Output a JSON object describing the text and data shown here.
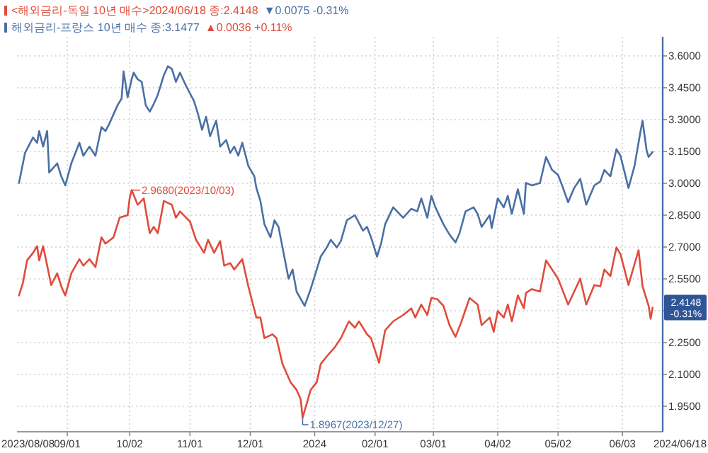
{
  "chart_data": {
    "type": "line",
    "series": [
      {
        "name": "<해외금리-독일 10년 매수>2024/06/18 종:2.4148",
        "color": "#e04b3c",
        "x": [
          "2023-08-08",
          "2023-08-10",
          "2023-08-12",
          "2023-08-15",
          "2023-08-17",
          "2023-08-18",
          "2023-08-20",
          "2023-08-24",
          "2023-08-27",
          "2023-08-29",
          "2023-08-31",
          "2023-09-03",
          "2023-09-07",
          "2023-09-09",
          "2023-09-12",
          "2023-09-15",
          "2023-09-18",
          "2023-09-20",
          "2023-09-24",
          "2023-09-27",
          "2023-10-01",
          "2023-10-02",
          "2023-10-03",
          "2023-10-06",
          "2023-10-09",
          "2023-10-12",
          "2023-10-14",
          "2023-10-16",
          "2023-10-19",
          "2023-10-23",
          "2023-10-25",
          "2023-10-27",
          "2023-11-01",
          "2023-11-04",
          "2023-11-08",
          "2023-11-10",
          "2023-11-13",
          "2023-11-16",
          "2023-11-18",
          "2023-11-21",
          "2023-11-23",
          "2023-11-27",
          "2023-11-30",
          "2023-12-04",
          "2023-12-06",
          "2023-12-08",
          "2023-12-12",
          "2023-12-14",
          "2023-12-17",
          "2023-12-21",
          "2023-12-24",
          "2023-12-26",
          "2023-12-27",
          "2023-12-31",
          "2024-01-03",
          "2024-01-05",
          "2024-01-08",
          "2024-01-12",
          "2024-01-15",
          "2024-01-19",
          "2024-01-22",
          "2024-01-24",
          "2024-01-28",
          "2024-01-30",
          "2024-02-03",
          "2024-02-06",
          "2024-02-10",
          "2024-02-15",
          "2024-02-19",
          "2024-02-21",
          "2024-02-24",
          "2024-02-27",
          "2024-02-29",
          "2024-03-03",
          "2024-03-06",
          "2024-03-09",
          "2024-03-12",
          "2024-03-15",
          "2024-03-19",
          "2024-03-23",
          "2024-03-25",
          "2024-03-29",
          "2024-03-31",
          "2024-04-02",
          "2024-04-05",
          "2024-04-07",
          "2024-04-09",
          "2024-04-12",
          "2024-04-15",
          "2024-04-16",
          "2024-04-19",
          "2024-04-23",
          "2024-04-26",
          "2024-04-29",
          "2024-05-02",
          "2024-05-04",
          "2024-05-07",
          "2024-05-10",
          "2024-05-13",
          "2024-05-16",
          "2024-05-20",
          "2024-05-23",
          "2024-05-25",
          "2024-05-28",
          "2024-05-31",
          "2024-06-02",
          "2024-06-06",
          "2024-06-11",
          "2024-06-13",
          "2024-06-16",
          "2024-06-17",
          "2024-06-18"
        ],
        "values": [
          2.472,
          2.533,
          2.637,
          2.673,
          2.704,
          2.637,
          2.704,
          2.521,
          2.576,
          2.515,
          2.472,
          2.576,
          2.643,
          2.612,
          2.643,
          2.606,
          2.746,
          2.716,
          2.746,
          2.838,
          2.85,
          2.929,
          2.968,
          2.899,
          2.929,
          2.765,
          2.795,
          2.765,
          2.917,
          2.899,
          2.838,
          2.868,
          2.82,
          2.734,
          2.673,
          2.734,
          2.673,
          2.728,
          2.612,
          2.624,
          2.594,
          2.643,
          2.515,
          2.368,
          2.368,
          2.271,
          2.289,
          2.271,
          2.149,
          2.063,
          2.027,
          1.984,
          1.8967,
          2.027,
          2.063,
          2.149,
          2.185,
          2.228,
          2.271,
          2.35,
          2.32,
          2.35,
          2.289,
          2.271,
          2.155,
          2.307,
          2.35,
          2.38,
          2.411,
          2.368,
          2.429,
          2.38,
          2.46,
          2.454,
          2.423,
          2.332,
          2.277,
          2.35,
          2.46,
          2.429,
          2.332,
          2.368,
          2.301,
          2.399,
          2.368,
          2.429,
          2.35,
          2.472,
          2.411,
          2.484,
          2.502,
          2.49,
          2.637,
          2.594,
          2.551,
          2.502,
          2.429,
          2.49,
          2.551,
          2.429,
          2.521,
          2.515,
          2.594,
          2.563,
          2.698,
          2.667,
          2.521,
          2.685,
          2.515,
          2.423,
          2.362,
          2.4148
        ]
      },
      {
        "name": "해외금리-프랑스 10년 매수 종:3.1477",
        "color": "#4a6fa5",
        "x": [
          "2023-08-08",
          "2023-08-11",
          "2023-08-15",
          "2023-08-17",
          "2023-08-18",
          "2023-08-20",
          "2023-08-22",
          "2023-08-23",
          "2023-08-27",
          "2023-08-29",
          "2023-08-31",
          "2023-09-03",
          "2023-09-07",
          "2023-09-09",
          "2023-09-12",
          "2023-09-15",
          "2023-09-18",
          "2023-09-20",
          "2023-09-22",
          "2023-09-26",
          "2023-09-28",
          "2023-09-29",
          "2023-10-01",
          "2023-10-03",
          "2023-10-04",
          "2023-10-06",
          "2023-10-08",
          "2023-10-10",
          "2023-10-12",
          "2023-10-14",
          "2023-10-16",
          "2023-10-19",
          "2023-10-21",
          "2023-10-23",
          "2023-10-25",
          "2023-10-27",
          "2023-10-30",
          "2023-11-03",
          "2023-11-05",
          "2023-11-07",
          "2023-11-09",
          "2023-11-11",
          "2023-11-14",
          "2023-11-16",
          "2023-11-19",
          "2023-11-21",
          "2023-11-23",
          "2023-11-25",
          "2023-11-27",
          "2023-11-30",
          "2023-12-03",
          "2023-12-04",
          "2023-12-06",
          "2023-12-08",
          "2023-12-11",
          "2023-12-13",
          "2023-12-15",
          "2023-12-17",
          "2023-12-20",
          "2023-12-22",
          "2023-12-24",
          "2023-12-28",
          "2023-12-31",
          "2024-01-03",
          "2024-01-05",
          "2024-01-08",
          "2024-01-10",
          "2024-01-13",
          "2024-01-15",
          "2024-01-18",
          "2024-01-22",
          "2024-01-26",
          "2024-01-28",
          "2024-01-30",
          "2024-02-02",
          "2024-02-04",
          "2024-02-06",
          "2024-02-10",
          "2024-02-15",
          "2024-02-19",
          "2024-02-22",
          "2024-02-24",
          "2024-02-27",
          "2024-02-29",
          "2024-03-02",
          "2024-03-06",
          "2024-03-09",
          "2024-03-12",
          "2024-03-14",
          "2024-03-17",
          "2024-03-21",
          "2024-03-23",
          "2024-03-25",
          "2024-03-29",
          "2024-03-30",
          "2024-04-02",
          "2024-04-05",
          "2024-04-07",
          "2024-04-09",
          "2024-04-12",
          "2024-04-15",
          "2024-04-16",
          "2024-04-19",
          "2024-04-23",
          "2024-04-26",
          "2024-04-29",
          "2024-05-02",
          "2024-05-04",
          "2024-05-07",
          "2024-05-10",
          "2024-05-13",
          "2024-05-16",
          "2024-05-20",
          "2024-05-23",
          "2024-05-25",
          "2024-05-28",
          "2024-05-31",
          "2024-06-02",
          "2024-06-06",
          "2024-06-09",
          "2024-06-12",
          "2024-06-13",
          "2024-06-15",
          "2024-06-16",
          "2024-06-18"
        ],
        "values": [
          3.002,
          3.143,
          3.216,
          3.191,
          3.246,
          3.173,
          3.246,
          3.051,
          3.094,
          3.033,
          2.99,
          3.094,
          3.191,
          3.13,
          3.173,
          3.13,
          3.265,
          3.246,
          3.283,
          3.368,
          3.399,
          3.527,
          3.405,
          3.49,
          3.521,
          3.49,
          3.478,
          3.368,
          3.338,
          3.374,
          3.417,
          3.509,
          3.551,
          3.539,
          3.478,
          3.521,
          3.46,
          3.387,
          3.326,
          3.252,
          3.313,
          3.222,
          3.295,
          3.173,
          3.204,
          3.143,
          3.173,
          3.13,
          3.191,
          3.082,
          3.033,
          2.978,
          2.917,
          2.807,
          2.746,
          2.826,
          2.795,
          2.698,
          2.551,
          2.594,
          2.49,
          2.423,
          2.502,
          2.594,
          2.655,
          2.698,
          2.734,
          2.698,
          2.728,
          2.826,
          2.85,
          2.777,
          2.795,
          2.746,
          2.655,
          2.716,
          2.807,
          2.887,
          2.838,
          2.88,
          2.868,
          2.929,
          2.838,
          2.941,
          2.887,
          2.807,
          2.759,
          2.722,
          2.765,
          2.868,
          2.887,
          2.856,
          2.795,
          2.85,
          2.789,
          2.929,
          2.887,
          2.941,
          2.856,
          2.972,
          2.856,
          3.002,
          2.99,
          3.002,
          3.124,
          3.063,
          3.039,
          2.99,
          2.911,
          2.978,
          3.021,
          2.899,
          2.99,
          3.009,
          3.063,
          3.033,
          3.161,
          3.13,
          2.978,
          3.082,
          3.246,
          3.295,
          3.155,
          3.124,
          3.1477
        ]
      }
    ],
    "xlim": [
      "2023-08-07",
      "2024-06-23"
    ],
    "xticks": [
      {
        "value": "2023-09-01",
        "label": "09/01"
      },
      {
        "value": "2023-10-02",
        "label": "10/02"
      },
      {
        "value": "2023-11-01",
        "label": "11/01"
      },
      {
        "value": "2023-12-01",
        "label": "12/01"
      },
      {
        "value": "2024-01-02",
        "label": "2024"
      },
      {
        "value": "2024-02-01",
        "label": "02/01"
      },
      {
        "value": "2024-03-01",
        "label": "03/01"
      },
      {
        "value": "2024-04-02",
        "label": "04/02"
      },
      {
        "value": "2024-05-02",
        "label": "05/02"
      },
      {
        "value": "2024-06-03",
        "label": "06/03"
      }
    ],
    "ylim": [
      1.83,
      3.69
    ],
    "yticks": [
      {
        "value": 1.95,
        "label": "1.9500"
      },
      {
        "value": 2.1,
        "label": "2.1000"
      },
      {
        "value": 2.25,
        "label": "2.2500"
      },
      {
        "value": 2.4,
        "label": null
      },
      {
        "value": 2.55,
        "label": "2.5500"
      },
      {
        "value": 2.7,
        "label": "2.7000"
      },
      {
        "value": 2.85,
        "label": "2.8500"
      },
      {
        "value": 3.0,
        "label": "3.0000"
      },
      {
        "value": 3.15,
        "label": "3.1500"
      },
      {
        "value": 3.3,
        "label": "3.3000"
      },
      {
        "value": 3.45,
        "label": "3.4500"
      },
      {
        "value": 3.6,
        "label": "3.6000"
      }
    ],
    "grid": true,
    "legend": "top left",
    "marker": "none",
    "line_style": "solid",
    "annotations": [
      "▼0.0075 -0.31%",
      "▲0.0036 +0.11%",
      "2023/08/08",
      "2024/06/18",
      {
        "text": "2.9680(2023/10/03)",
        "x": "2023-10-03",
        "y": 2.968
      },
      {
        "text": "1.8967(2023/12/27)",
        "x": "2023-12-27",
        "y": 1.8967
      },
      {
        "text": "2.4148 -0.31%",
        "x": "2024-06-18",
        "y": 2.4148
      }
    ]
  }
}
